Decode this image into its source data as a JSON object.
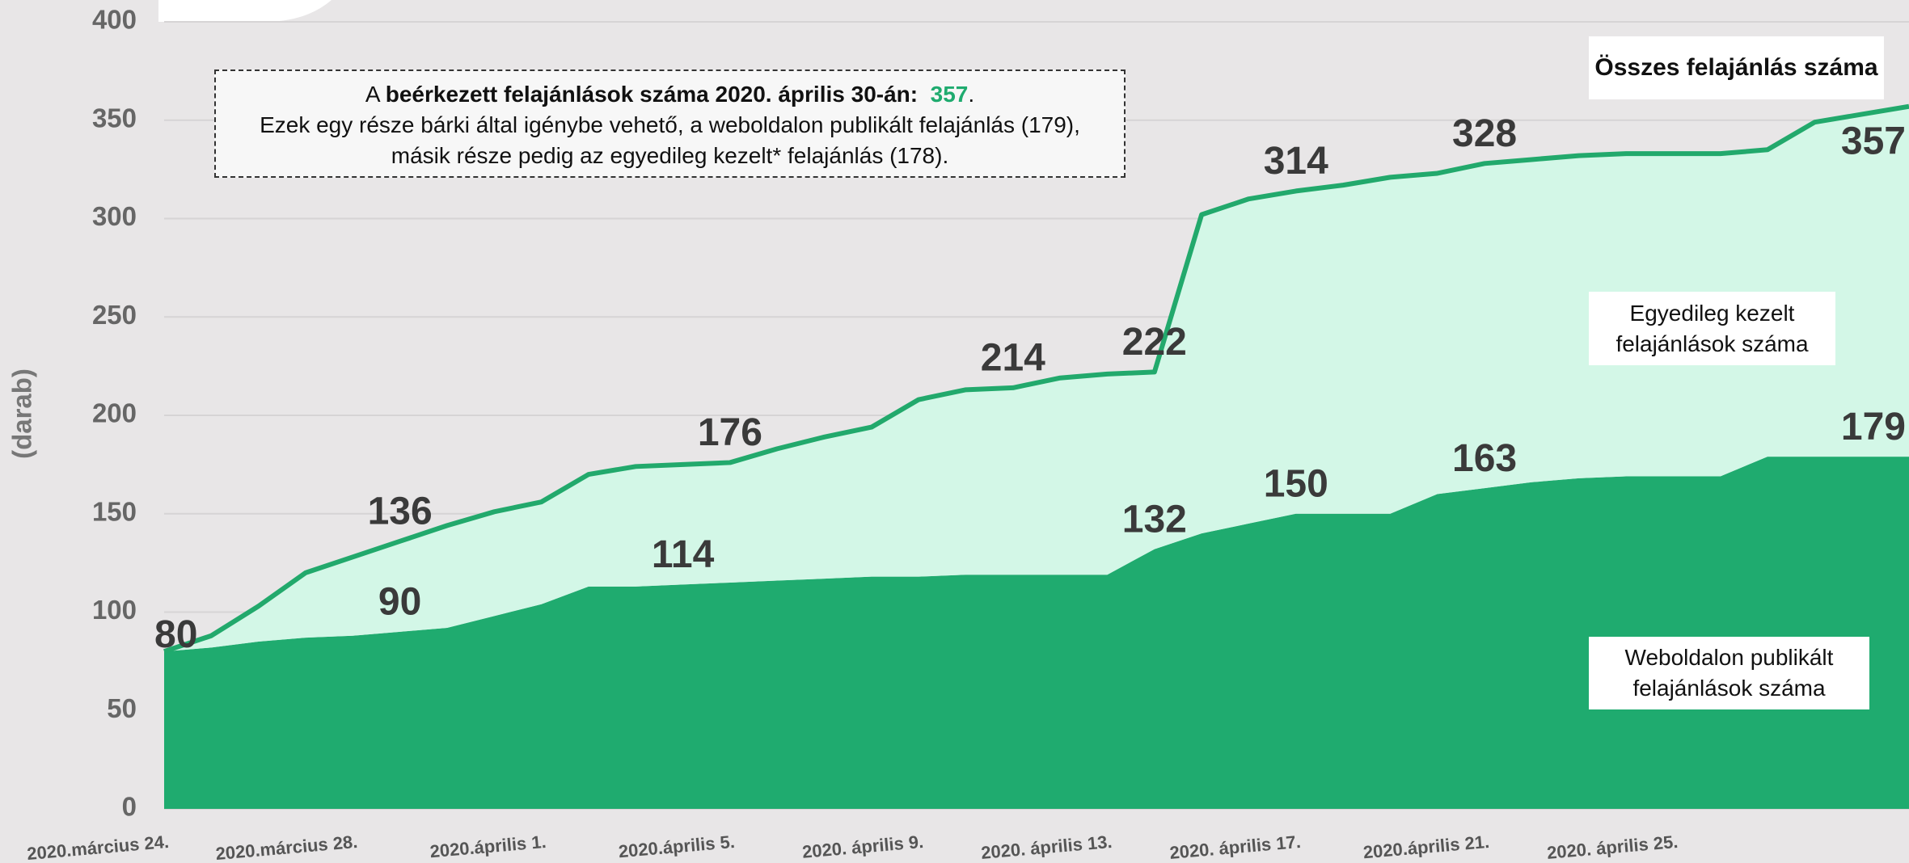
{
  "chart_data": {
    "type": "stacked_area",
    "y_axis_label": "(darab)",
    "categories": [
      "2020.március 24.",
      null,
      null,
      null,
      "2020.március 28.",
      null,
      null,
      null,
      "2020.április 1.",
      null,
      null,
      null,
      "2020.április 5.",
      null,
      null,
      null,
      "2020. április 9.",
      null,
      null,
      null,
      "2020. április 13.",
      null,
      null,
      null,
      "2020. április 17.",
      null,
      null,
      null,
      "2020.április 21.",
      null,
      null,
      null,
      "2020. április 25.",
      null,
      null,
      null,
      null,
      null
    ],
    "ylim": [
      0,
      400
    ],
    "yticks": [
      0,
      50,
      100,
      150,
      200,
      250,
      300,
      350,
      400
    ],
    "grid": true,
    "series": [
      {
        "name": "Weboldalon publikált felajánlások száma",
        "color": "#1fab6f",
        "values": [
          80,
          82,
          85,
          87,
          88,
          90,
          92,
          98,
          104,
          113,
          113,
          114,
          115,
          116,
          117,
          118,
          118,
          119,
          119,
          119,
          119,
          132,
          140,
          145,
          150,
          150,
          150,
          160,
          163,
          166,
          168,
          169,
          169,
          169,
          179,
          179,
          179,
          179
        ],
        "value_labels": [
          "80",
          null,
          null,
          null,
          null,
          "90",
          null,
          null,
          null,
          null,
          null,
          "114",
          null,
          null,
          null,
          null,
          null,
          null,
          null,
          null,
          null,
          "132",
          null,
          null,
          "150",
          null,
          null,
          null,
          "163",
          null,
          null,
          null,
          null,
          null,
          null,
          null,
          null,
          "179"
        ]
      },
      {
        "name": "Egyedileg kezelt felajánlások száma",
        "color": "#d3f7e7",
        "values": [
          0,
          6,
          18,
          33,
          40,
          46,
          52,
          53,
          52,
          57,
          61,
          61,
          61,
          67,
          72,
          76,
          90,
          94,
          95,
          100,
          102,
          90,
          162,
          165,
          164,
          167,
          171,
          163,
          165,
          164,
          164,
          164,
          164,
          164,
          156,
          170,
          174,
          178
        ]
      },
      {
        "name": "Összes felajánlás száma",
        "color": "#22a96c",
        "type": "line",
        "values": [
          80,
          88,
          103,
          120,
          128,
          136,
          144,
          151,
          156,
          170,
          174,
          175,
          176,
          183,
          189,
          194,
          208,
          213,
          214,
          219,
          221,
          222,
          302,
          310,
          314,
          317,
          321,
          323,
          328,
          330,
          332,
          333,
          333,
          333,
          335,
          349,
          353,
          357
        ],
        "value_labels": [
          null,
          null,
          null,
          null,
          null,
          "136",
          null,
          null,
          null,
          null,
          null,
          null,
          "176",
          null,
          null,
          null,
          null,
          null,
          "214",
          null,
          null,
          "222",
          null,
          null,
          "314",
          null,
          null,
          null,
          "328",
          null,
          null,
          null,
          null,
          null,
          null,
          null,
          null,
          "357"
        ]
      }
    ],
    "info_box": {
      "lines": [
        [
          {
            "text": "A "
          },
          {
            "text": "beérkezett felajánlások száma 2020. április 30-án:  ",
            "bold": true
          },
          {
            "text": "357",
            "bold": true,
            "color": "#1fab6f"
          },
          {
            "text": "."
          }
        ],
        [
          {
            "text": "Ezek egy része bárki által igénybe vehető, a weboldalon publikált felajánlás (179),"
          }
        ],
        [
          {
            "text": "másik része pedig az egyedileg kezelt* felajánlás (178)."
          }
        ]
      ]
    }
  }
}
